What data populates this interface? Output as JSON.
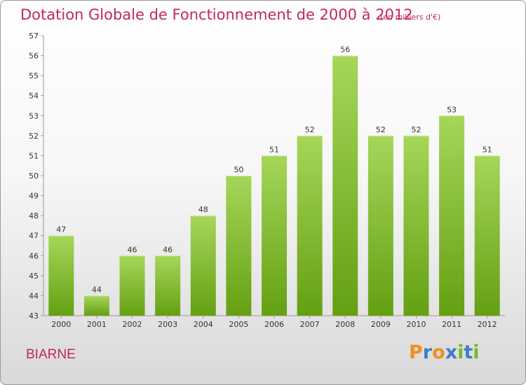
{
  "header": {
    "title": "Dotation Globale de Fonctionnement de 2000 à 2012",
    "unit": "(en milliers d'€)"
  },
  "footer": {
    "commune": "BIARNE",
    "logo_text": "Proxiti"
  },
  "colors": {
    "title": "#c1285b",
    "bar_light": "#a6d65a",
    "bar_dark": "#64a012",
    "logo_letters": [
      "#f0901e",
      "#3d7fc4",
      "#f0901e",
      "#3d7fc4",
      "#7ab82a",
      "#3d7fc4",
      "#7ab82a"
    ]
  },
  "chart_data": {
    "type": "bar",
    "categories": [
      "2000",
      "2001",
      "2002",
      "2003",
      "2004",
      "2005",
      "2006",
      "2007",
      "2008",
      "2009",
      "2010",
      "2011",
      "2012"
    ],
    "values": [
      47,
      44,
      46,
      46,
      48,
      50,
      51,
      52,
      56,
      52,
      52,
      53,
      51
    ],
    "title": "Dotation Globale de Fonctionnement de 2000 à 2012",
    "xlabel": "",
    "ylabel": "",
    "ylim": [
      43,
      57
    ],
    "yticks": [
      43,
      44,
      45,
      46,
      47,
      48,
      49,
      50,
      51,
      52,
      53,
      54,
      55,
      56,
      57
    ],
    "grid": false,
    "data_labels": true
  }
}
